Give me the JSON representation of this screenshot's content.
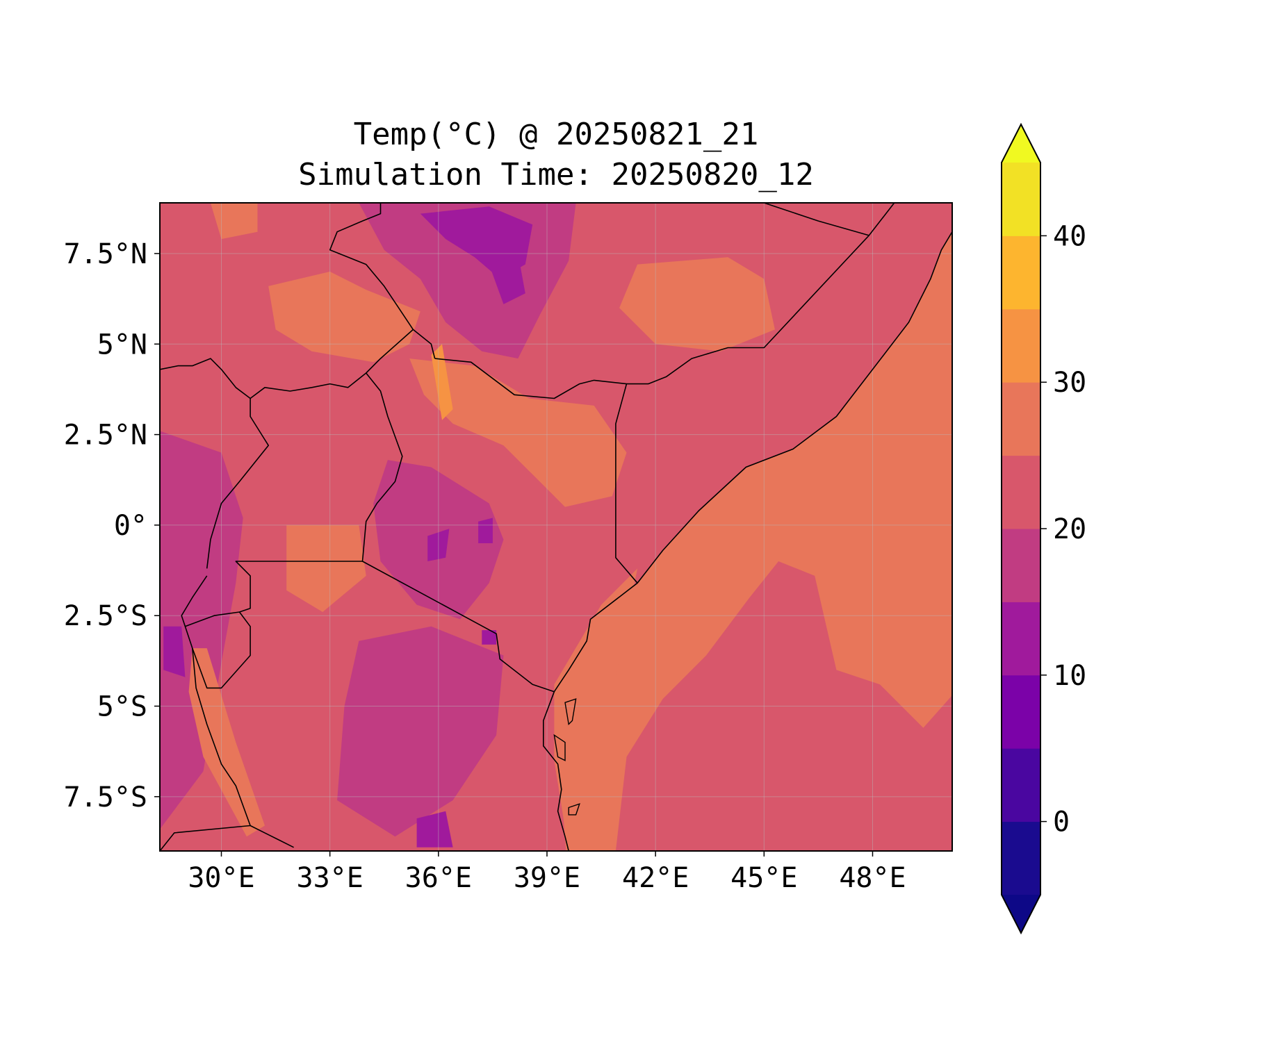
{
  "title": {
    "line1": "Temp(°C) @ 20250821_21",
    "line2": "Simulation Time: 20250820_12"
  },
  "map": {
    "region": "East Africa",
    "lon_range": [
      28.3,
      50.2
    ],
    "lat_range": [
      -9.0,
      8.9
    ],
    "gridlines": true,
    "x_ticks": [
      {
        "lon": 30,
        "label": "30°E"
      },
      {
        "lon": 33,
        "label": "33°E"
      },
      {
        "lon": 36,
        "label": "36°E"
      },
      {
        "lon": 39,
        "label": "39°E"
      },
      {
        "lon": 42,
        "label": "42°E"
      },
      {
        "lon": 45,
        "label": "45°E"
      },
      {
        "lon": 48,
        "label": "48°E"
      }
    ],
    "y_ticks": [
      {
        "lat": 7.5,
        "label": "7.5°N"
      },
      {
        "lat": 5,
        "label": "5°N"
      },
      {
        "lat": 2.5,
        "label": "2.5°N"
      },
      {
        "lat": 0,
        "label": "0°"
      },
      {
        "lat": -2.5,
        "label": "2.5°S"
      },
      {
        "lat": -5,
        "label": "5°S"
      },
      {
        "lat": -7.5,
        "label": "7.5°S"
      }
    ]
  },
  "colorbar": {
    "colormap": "plasma",
    "extend": "both",
    "vmin": -5,
    "vmax": 45,
    "levels": [
      -5,
      0,
      5,
      10,
      15,
      20,
      25,
      30,
      35,
      40,
      45
    ],
    "colors": [
      "#1a0b8f",
      "#4a06a0",
      "#7b02a8",
      "#a01a9c",
      "#c13c82",
      "#d8576b",
      "#e8765a",
      "#f69343",
      "#fdb52f",
      "#f2e125"
    ],
    "under_color": "#0d0887",
    "over_color": "#f0f921",
    "ticks": [
      {
        "value": 0,
        "label": "0"
      },
      {
        "value": 10,
        "label": "10"
      },
      {
        "value": 20,
        "label": "20"
      },
      {
        "value": 30,
        "label": "30"
      },
      {
        "value": 40,
        "label": "40"
      }
    ]
  },
  "field": {
    "ocean_value": 27,
    "base_value": 22,
    "regions": [
      {
        "name": "ethiopian-highlands",
        "value": 17,
        "pts": [
          [
            33.8,
            8.9
          ],
          [
            39.8,
            8.9
          ],
          [
            39.6,
            7.3
          ],
          [
            38.8,
            5.8
          ],
          [
            38.2,
            4.6
          ],
          [
            37.2,
            4.8
          ],
          [
            36.2,
            5.6
          ],
          [
            35.5,
            6.8
          ],
          [
            34.5,
            7.6
          ]
        ]
      },
      {
        "name": "ethiopia-core",
        "value": 12,
        "pts": [
          [
            35.5,
            8.6
          ],
          [
            37.4,
            8.8
          ],
          [
            38.6,
            8.3
          ],
          [
            38.4,
            7.2
          ],
          [
            37.7,
            6.8
          ],
          [
            37.0,
            7.4
          ],
          [
            36.2,
            7.9
          ]
        ]
      },
      {
        "name": "ethiopia-core-2",
        "value": 12,
        "pts": [
          [
            37.4,
            7.2
          ],
          [
            38.2,
            7.5
          ],
          [
            38.4,
            6.4
          ],
          [
            37.8,
            6.1
          ]
        ]
      },
      {
        "name": "south-sudan-warm",
        "value": 27,
        "pts": [
          [
            31.3,
            6.6
          ],
          [
            33.0,
            7.0
          ],
          [
            34.0,
            6.5
          ],
          [
            35.5,
            5.9
          ],
          [
            35.2,
            5.0
          ],
          [
            34.2,
            4.5
          ],
          [
            32.5,
            4.8
          ],
          [
            31.5,
            5.4
          ]
        ]
      },
      {
        "name": "south-sudan-warm-2",
        "value": 27,
        "pts": [
          [
            29.7,
            8.9
          ],
          [
            31.0,
            8.9
          ],
          [
            31.0,
            8.1
          ],
          [
            30.0,
            7.9
          ]
        ]
      },
      {
        "name": "somali-plateau-warm",
        "value": 27,
        "pts": [
          [
            41.5,
            7.2
          ],
          [
            44.0,
            7.4
          ],
          [
            45.0,
            6.8
          ],
          [
            45.3,
            5.4
          ],
          [
            43.8,
            4.8
          ],
          [
            42.0,
            5.0
          ],
          [
            41.0,
            6.0
          ]
        ]
      },
      {
        "name": "north-kenya-warm",
        "value": 27,
        "pts": [
          [
            35.2,
            4.6
          ],
          [
            37.0,
            4.4
          ],
          [
            38.5,
            3.5
          ],
          [
            40.3,
            3.3
          ],
          [
            41.2,
            2.0
          ],
          [
            40.8,
            0.8
          ],
          [
            39.5,
            0.5
          ],
          [
            38.6,
            1.4
          ],
          [
            37.8,
            2.2
          ],
          [
            36.4,
            2.8
          ],
          [
            35.6,
            3.6
          ]
        ]
      },
      {
        "name": "turkana-hot",
        "value": 32,
        "pts": [
          [
            35.8,
            4.7
          ],
          [
            36.1,
            5.0
          ],
          [
            36.4,
            3.2
          ],
          [
            36.1,
            2.9
          ]
        ]
      },
      {
        "name": "kenya-highlands",
        "value": 17,
        "pts": [
          [
            34.6,
            1.8
          ],
          [
            35.8,
            1.6
          ],
          [
            37.4,
            0.6
          ],
          [
            37.8,
            -0.4
          ],
          [
            37.4,
            -1.6
          ],
          [
            36.6,
            -2.6
          ],
          [
            35.4,
            -2.2
          ],
          [
            34.4,
            -1.0
          ],
          [
            34.2,
            0.6
          ]
        ]
      },
      {
        "name": "kenya-cold-core",
        "value": 12,
        "pts": [
          [
            35.7,
            -0.3
          ],
          [
            36.3,
            -0.1
          ],
          [
            36.2,
            -0.9
          ],
          [
            35.7,
            -1.0
          ]
        ]
      },
      {
        "name": "kenya-cold-core-2",
        "value": 12,
        "pts": [
          [
            37.1,
            0.1
          ],
          [
            37.5,
            0.2
          ],
          [
            37.5,
            -0.5
          ],
          [
            37.1,
            -0.5
          ]
        ]
      },
      {
        "name": "kilimanjaro-cold",
        "value": 12,
        "pts": [
          [
            37.2,
            -2.9
          ],
          [
            37.6,
            -2.9
          ],
          [
            37.6,
            -3.3
          ],
          [
            37.2,
            -3.3
          ]
        ]
      },
      {
        "name": "lake-victoria",
        "value": 27,
        "pts": [
          [
            31.8,
            0.0
          ],
          [
            33.8,
            0.0
          ],
          [
            34.0,
            -1.4
          ],
          [
            32.8,
            -2.4
          ],
          [
            31.8,
            -1.8
          ]
        ]
      },
      {
        "name": "tanzania-highlands",
        "value": 17,
        "pts": [
          [
            33.8,
            -3.2
          ],
          [
            35.8,
            -2.8
          ],
          [
            37.8,
            -3.6
          ],
          [
            37.6,
            -5.8
          ],
          [
            36.4,
            -7.6
          ],
          [
            34.8,
            -8.6
          ],
          [
            33.2,
            -7.6
          ],
          [
            33.4,
            -5.0
          ]
        ]
      },
      {
        "name": "tanzania-cold",
        "value": 12,
        "pts": [
          [
            35.4,
            -8.1
          ],
          [
            36.2,
            -7.9
          ],
          [
            36.4,
            -8.9
          ],
          [
            35.4,
            -8.9
          ]
        ]
      },
      {
        "name": "west-highlands",
        "value": 17,
        "pts": [
          [
            28.3,
            2.6
          ],
          [
            30.0,
            2.0
          ],
          [
            30.6,
            0.2
          ],
          [
            30.4,
            -1.6
          ],
          [
            30.0,
            -3.8
          ],
          [
            29.5,
            -6.8
          ],
          [
            28.3,
            -8.4
          ]
        ]
      },
      {
        "name": "west-cold",
        "value": 12,
        "pts": [
          [
            28.4,
            -2.8
          ],
          [
            28.9,
            -2.8
          ],
          [
            29.0,
            -4.2
          ],
          [
            28.4,
            -4.0
          ]
        ]
      },
      {
        "name": "lake-tanganyika",
        "value": 27,
        "pts": [
          [
            29.2,
            -3.4
          ],
          [
            29.6,
            -3.4
          ],
          [
            30.4,
            -6.0
          ],
          [
            31.2,
            -8.3
          ],
          [
            30.7,
            -8.6
          ],
          [
            29.5,
            -6.4
          ],
          [
            29.1,
            -4.6
          ]
        ]
      },
      {
        "name": "coastal-belt",
        "value": 27,
        "pts": [
          [
            39.2,
            -4.4
          ],
          [
            40.5,
            -2.2
          ],
          [
            41.5,
            -1.2
          ],
          [
            40.9,
            -4.2
          ],
          [
            40.0,
            -9.0
          ],
          [
            39.6,
            -9.0
          ],
          [
            39.2,
            -6.5
          ]
        ]
      },
      {
        "name": "offshore-plume",
        "value": 22,
        "pts": [
          [
            40.9,
            -9.0
          ],
          [
            50.2,
            -9.0
          ],
          [
            50.2,
            -4.7
          ],
          [
            49.4,
            -5.6
          ],
          [
            48.2,
            -4.4
          ],
          [
            47.0,
            -4.0
          ],
          [
            46.4,
            -1.4
          ],
          [
            45.4,
            -1.0
          ],
          [
            44.6,
            -2.0
          ],
          [
            43.4,
            -3.6
          ],
          [
            42.2,
            -4.8
          ],
          [
            41.2,
            -6.4
          ]
        ]
      }
    ]
  },
  "borders": [
    [
      [
        34.4,
        8.9
      ],
      [
        34.4,
        8.6
      ],
      [
        33.9,
        8.4
      ],
      [
        33.2,
        8.1
      ],
      [
        33.0,
        7.6
      ],
      [
        34.0,
        7.2
      ],
      [
        34.5,
        6.6
      ],
      [
        34.9,
        6.0
      ],
      [
        35.3,
        5.4
      ],
      [
        35.8,
        5.0
      ],
      [
        35.9,
        4.6
      ]
    ],
    [
      [
        35.9,
        4.6
      ],
      [
        36.9,
        4.5
      ],
      [
        38.1,
        3.6
      ],
      [
        39.2,
        3.5
      ],
      [
        39.9,
        3.9
      ],
      [
        40.3,
        4.0
      ],
      [
        41.2,
        3.9
      ],
      [
        41.8,
        3.9
      ],
      [
        42.3,
        4.1
      ],
      [
        43.0,
        4.6
      ],
      [
        44.0,
        4.9
      ],
      [
        45.0,
        4.9
      ],
      [
        47.9,
        8.0
      ],
      [
        48.6,
        8.9
      ]
    ],
    [
      [
        45.0,
        8.9
      ],
      [
        46.5,
        8.4
      ],
      [
        47.9,
        8.0
      ]
    ],
    [
      [
        28.3,
        4.3
      ],
      [
        28.8,
        4.4
      ],
      [
        29.2,
        4.4
      ],
      [
        29.7,
        4.6
      ],
      [
        30.0,
        4.3
      ],
      [
        30.4,
        3.8
      ],
      [
        30.8,
        3.5
      ],
      [
        31.2,
        3.8
      ],
      [
        31.9,
        3.7
      ],
      [
        32.5,
        3.8
      ],
      [
        33.0,
        3.9
      ],
      [
        33.5,
        3.8
      ],
      [
        34.0,
        4.2
      ],
      [
        34.4,
        4.6
      ],
      [
        35.3,
        5.4
      ]
    ],
    [
      [
        34.0,
        4.2
      ],
      [
        34.4,
        3.7
      ],
      [
        34.6,
        3.0
      ],
      [
        35.0,
        1.9
      ],
      [
        34.8,
        1.2
      ],
      [
        34.3,
        0.6
      ],
      [
        34.0,
        0.1
      ],
      [
        33.9,
        -1.0
      ]
    ],
    [
      [
        30.8,
        3.5
      ],
      [
        30.8,
        3.0
      ],
      [
        31.3,
        2.2
      ],
      [
        30.5,
        1.2
      ],
      [
        30.0,
        0.6
      ],
      [
        29.7,
        -0.4
      ],
      [
        29.6,
        -1.2
      ]
    ],
    [
      [
        33.9,
        -1.0
      ],
      [
        33.0,
        -1.0
      ],
      [
        31.7,
        -1.0
      ],
      [
        30.4,
        -1.0
      ],
      [
        30.8,
        -1.4
      ],
      [
        30.8,
        -2.3
      ],
      [
        30.5,
        -2.4
      ],
      [
        29.8,
        -2.5
      ],
      [
        29.0,
        -2.8
      ],
      [
        28.9,
        -2.5
      ],
      [
        29.2,
        -2.0
      ],
      [
        29.6,
        -1.4
      ]
    ],
    [
      [
        29.0,
        -2.8
      ],
      [
        29.2,
        -3.4
      ],
      [
        29.6,
        -4.5
      ],
      [
        30.0,
        -4.5
      ],
      [
        30.8,
        -3.6
      ],
      [
        30.8,
        -2.8
      ],
      [
        30.5,
        -2.4
      ]
    ],
    [
      [
        29.2,
        -3.4
      ],
      [
        29.3,
        -4.5
      ],
      [
        29.6,
        -5.5
      ],
      [
        30.0,
        -6.6
      ],
      [
        30.4,
        -7.2
      ],
      [
        30.8,
        -8.3
      ],
      [
        31.6,
        -8.7
      ],
      [
        32.0,
        -8.9
      ]
    ],
    [
      [
        28.3,
        -9.0
      ],
      [
        28.7,
        -8.5
      ],
      [
        30.8,
        -8.3
      ]
    ],
    [
      [
        33.9,
        -1.0
      ],
      [
        37.6,
        -3.0
      ],
      [
        37.7,
        -3.7
      ],
      [
        38.6,
        -4.4
      ],
      [
        39.2,
        -4.6
      ]
    ],
    [
      [
        41.2,
        3.9
      ],
      [
        40.9,
        2.8
      ],
      [
        40.9,
        -0.9
      ],
      [
        41.5,
        -1.6
      ]
    ]
  ],
  "coastline": [
    [
      39.2,
      -4.6
    ],
    [
      39.6,
      -4.0
    ],
    [
      40.1,
      -3.2
    ],
    [
      40.2,
      -2.6
    ],
    [
      41.5,
      -1.6
    ],
    [
      42.2,
      -0.7
    ],
    [
      43.2,
      0.4
    ],
    [
      44.5,
      1.6
    ],
    [
      45.8,
      2.1
    ],
    [
      47.0,
      3.0
    ],
    [
      48.0,
      4.3
    ],
    [
      49.0,
      5.6
    ],
    [
      49.6,
      6.8
    ],
    [
      49.9,
      7.6
    ],
    [
      50.2,
      8.1
    ]
  ],
  "coastline_south": [
    [
      39.2,
      -4.6
    ],
    [
      38.9,
      -5.4
    ],
    [
      38.9,
      -6.1
    ],
    [
      39.3,
      -6.6
    ],
    [
      39.4,
      -7.3
    ],
    [
      39.3,
      -7.9
    ],
    [
      39.5,
      -8.6
    ],
    [
      39.6,
      -9.0
    ]
  ],
  "islands": [
    [
      [
        39.5,
        -4.9
      ],
      [
        39.8,
        -4.8
      ],
      [
        39.7,
        -5.4
      ],
      [
        39.6,
        -5.5
      ]
    ],
    [
      [
        39.2,
        -5.8
      ],
      [
        39.5,
        -6.0
      ],
      [
        39.5,
        -6.5
      ],
      [
        39.3,
        -6.4
      ]
    ],
    [
      [
        39.6,
        -7.8
      ],
      [
        39.9,
        -7.7
      ],
      [
        39.8,
        -8.0
      ],
      [
        39.6,
        -8.0
      ]
    ]
  ]
}
